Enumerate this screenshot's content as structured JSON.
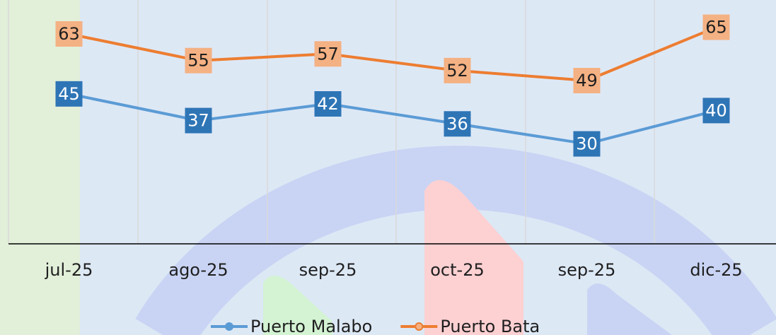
{
  "chart_data": {
    "type": "line",
    "categories": [
      "jul-25",
      "ago-25",
      "sep-25",
      "oct-25",
      "sep-25",
      "dic-25"
    ],
    "series": [
      {
        "name": "Puerto Malabo",
        "color": "#5b9bd5",
        "label_fill": "#2e75b6",
        "label_text": "#ffffff",
        "values": [
          45,
          37,
          42,
          36,
          30,
          40
        ]
      },
      {
        "name": "Puerto Bata",
        "color": "#ed7d31",
        "label_fill": "#f4b183",
        "label_text": "#1f1f1f",
        "values": [
          63,
          55,
          57,
          52,
          49,
          65
        ]
      }
    ],
    "ylim": [
      0,
      70
    ],
    "legend": "bottom"
  }
}
